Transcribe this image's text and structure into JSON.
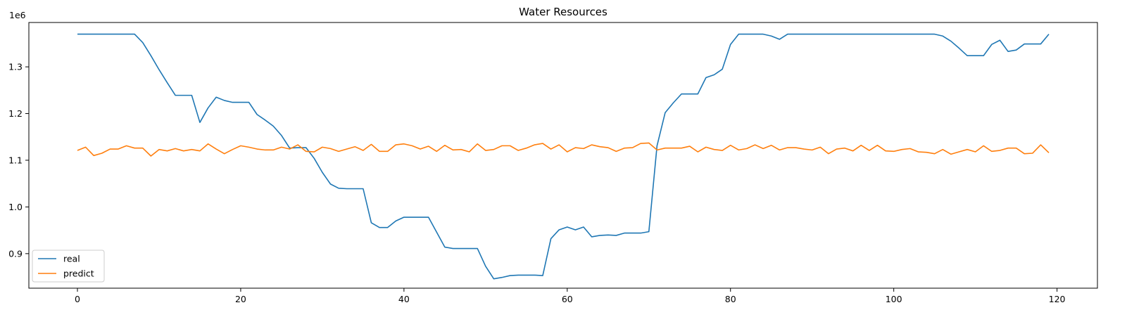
{
  "chart_data": {
    "type": "line",
    "title": "Water Resources",
    "xlabel": "",
    "ylabel": "",
    "y_offset_label": "1e6",
    "xlim": [
      -5.95,
      124.95
    ],
    "ylim": [
      826000,
      1395000
    ],
    "x_ticks": [
      0,
      20,
      40,
      60,
      80,
      100,
      120
    ],
    "x_tick_labels": [
      "0",
      "20",
      "40",
      "60",
      "80",
      "100",
      "120"
    ],
    "y_ticks": [
      900000,
      1000000,
      1100000,
      1200000,
      1300000
    ],
    "y_tick_labels": [
      "0.9",
      "1.0",
      "1.1",
      "1.2",
      "1.3"
    ],
    "grid": false,
    "legend_position": "lower-left",
    "series": [
      {
        "name": "real",
        "color": "#1f77b4",
        "values": [
          1370000,
          1370000,
          1370000,
          1370000,
          1370000,
          1370000,
          1370000,
          1370000,
          1352000,
          1324000,
          1294000,
          1266000,
          1239000,
          1239000,
          1239000,
          1181000,
          1212000,
          1235000,
          1228000,
          1224000,
          1224000,
          1224000,
          1198000,
          1186000,
          1173000,
          1153000,
          1126000,
          1127000,
          1127000,
          1104000,
          1074000,
          1049000,
          1040000,
          1039000,
          1039000,
          1039000,
          966000,
          956000,
          956000,
          970000,
          978000,
          978000,
          978000,
          978000,
          946000,
          914000,
          911000,
          911000,
          911000,
          911000,
          873000,
          846000,
          849000,
          853000,
          854000,
          854000,
          854000,
          853000,
          932000,
          951000,
          957000,
          951000,
          957000,
          936000,
          939000,
          940000,
          939000,
          944000,
          944000,
          944000,
          947000,
          1131000,
          1202000,
          1223000,
          1242000,
          1242000,
          1242000,
          1277000,
          1283000,
          1295000,
          1348000,
          1370000,
          1370000,
          1370000,
          1370000,
          1366000,
          1359000,
          1370000,
          1370000,
          1370000,
          1370000,
          1370000,
          1370000,
          1370000,
          1370000,
          1370000,
          1370000,
          1370000,
          1370000,
          1370000,
          1370000,
          1370000,
          1370000,
          1370000,
          1370000,
          1370000,
          1366000,
          1355000,
          1340000,
          1324000,
          1324000,
          1324000,
          1348000,
          1357000,
          1333000,
          1336000,
          1349000,
          1349000,
          1349000,
          1370000
        ]
      },
      {
        "name": "predict",
        "color": "#ff7f0e",
        "values": [
          1121000,
          1128000,
          1110000,
          1115000,
          1124000,
          1124000,
          1131000,
          1126000,
          1126000,
          1109000,
          1123000,
          1120000,
          1125000,
          1120000,
          1123000,
          1120000,
          1135000,
          1124000,
          1114000,
          1123000,
          1131000,
          1128000,
          1124000,
          1122000,
          1122000,
          1128000,
          1124000,
          1133000,
          1119000,
          1118000,
          1128000,
          1125000,
          1119000,
          1124000,
          1129000,
          1121000,
          1134000,
          1119000,
          1119000,
          1133000,
          1135000,
          1131000,
          1124000,
          1130000,
          1119000,
          1132000,
          1122000,
          1123000,
          1118000,
          1135000,
          1121000,
          1123000,
          1131000,
          1131000,
          1121000,
          1126000,
          1133000,
          1136000,
          1124000,
          1133000,
          1118000,
          1127000,
          1125000,
          1133000,
          1129000,
          1127000,
          1119000,
          1126000,
          1127000,
          1136000,
          1137000,
          1122000,
          1126000,
          1126000,
          1126000,
          1130000,
          1118000,
          1128000,
          1123000,
          1121000,
          1132000,
          1122000,
          1125000,
          1133000,
          1125000,
          1132000,
          1122000,
          1127000,
          1127000,
          1124000,
          1122000,
          1128000,
          1114000,
          1124000,
          1126000,
          1120000,
          1132000,
          1121000,
          1132000,
          1120000,
          1119000,
          1123000,
          1125000,
          1118000,
          1117000,
          1114000,
          1123000,
          1113000,
          1118000,
          1123000,
          1118000,
          1131000,
          1119000,
          1121000,
          1126000,
          1126000,
          1114000,
          1115000,
          1133000,
          1116000
        ]
      }
    ]
  }
}
